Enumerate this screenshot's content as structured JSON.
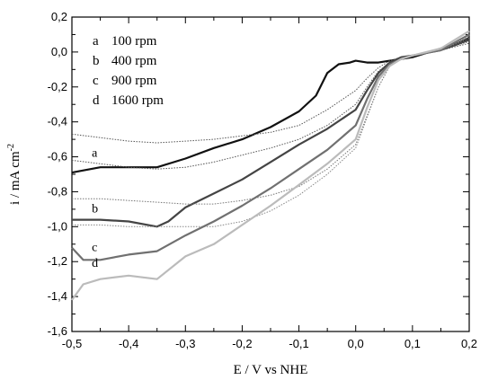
{
  "chart_data": {
    "type": "line",
    "xlabel": "E / V vs NHE",
    "ylabel": "i / mA cm",
    "ylabel_sup": "-2",
    "xlim": [
      -0.5,
      0.2
    ],
    "ylim": [
      -1.6,
      0.2
    ],
    "xticks": [
      -0.5,
      -0.4,
      -0.3,
      -0.2,
      -0.1,
      0.0,
      0.1,
      0.2
    ],
    "xtick_labels": [
      "-0,5",
      "-0,4",
      "-0,3",
      "-0,2",
      "-0,1",
      "0,0",
      "0,1",
      "0,2"
    ],
    "yticks": [
      0.2,
      0.0,
      -0.2,
      -0.4,
      -0.6,
      -0.8,
      -1.0,
      -1.2,
      -1.4,
      -1.6
    ],
    "ytick_labels": [
      "0,2",
      "0,0",
      "-0,2",
      "-0,4",
      "-0,6",
      "-0,8",
      "-1,0",
      "-1,2",
      "-1,4",
      "-1,6"
    ],
    "grid": false,
    "legend_position": "top-left",
    "legend": [
      {
        "letter": "a",
        "text": "100 rpm"
      },
      {
        "letter": "b",
        "text": "400 rpm"
      },
      {
        "letter": "c",
        "text": "900 rpm"
      },
      {
        "letter": "d",
        "text": "1600 rpm"
      }
    ],
    "series": [
      {
        "label": "a",
        "style": "solid",
        "color": "#111111",
        "label_at": [
          -0.465,
          -0.62
        ],
        "x": [
          -0.5,
          -0.45,
          -0.4,
          -0.35,
          -0.3,
          -0.25,
          -0.2,
          -0.15,
          -0.1,
          -0.07,
          -0.05,
          -0.03,
          -0.01,
          0.0,
          0.02,
          0.04,
          0.06,
          0.08,
          0.1,
          0.12,
          0.14,
          0.16,
          0.18,
          0.2
        ],
        "values": [
          -0.69,
          -0.66,
          -0.66,
          -0.66,
          -0.61,
          -0.55,
          -0.5,
          -0.43,
          -0.34,
          -0.25,
          -0.12,
          -0.07,
          -0.06,
          -0.05,
          -0.06,
          -0.06,
          -0.05,
          -0.04,
          -0.03,
          -0.01,
          0.01,
          0.03,
          0.05,
          0.08
        ]
      },
      {
        "label": "a-dotted",
        "style": "dotted",
        "color": "#555555",
        "x": [
          -0.5,
          -0.45,
          -0.4,
          -0.35,
          -0.3,
          -0.25,
          -0.2,
          -0.15,
          -0.1,
          -0.05,
          0.0,
          0.02,
          0.04,
          0.06,
          0.08,
          0.1,
          0.15,
          0.2
        ],
        "values": [
          -0.47,
          -0.49,
          -0.51,
          -0.52,
          -0.51,
          -0.5,
          -0.48,
          -0.46,
          -0.42,
          -0.33,
          -0.22,
          -0.15,
          -0.09,
          -0.05,
          -0.03,
          -0.02,
          0.01,
          0.05
        ]
      },
      {
        "label": "a-dotted-2",
        "style": "dotted",
        "color": "#555555",
        "x": [
          -0.5,
          -0.45,
          -0.4,
          -0.35,
          -0.3,
          -0.25,
          -0.2,
          -0.15,
          -0.1,
          -0.05,
          0.0,
          0.02,
          0.04,
          0.06,
          0.08,
          0.1,
          0.15,
          0.2
        ],
        "values": [
          -0.62,
          -0.64,
          -0.66,
          -0.67,
          -0.66,
          -0.63,
          -0.59,
          -0.55,
          -0.5,
          -0.42,
          -0.3,
          -0.2,
          -0.11,
          -0.06,
          -0.03,
          -0.02,
          0.01,
          0.06
        ]
      },
      {
        "label": "b",
        "style": "solid",
        "color": "#444444",
        "label_at": [
          -0.465,
          -0.94
        ],
        "x": [
          -0.5,
          -0.45,
          -0.4,
          -0.35,
          -0.33,
          -0.3,
          -0.25,
          -0.2,
          -0.15,
          -0.1,
          -0.05,
          0.0,
          0.02,
          0.04,
          0.06,
          0.08,
          0.1,
          0.15,
          0.2
        ],
        "values": [
          -0.96,
          -0.96,
          -0.97,
          -1.0,
          -0.97,
          -0.89,
          -0.81,
          -0.73,
          -0.63,
          -0.53,
          -0.44,
          -0.33,
          -0.22,
          -0.12,
          -0.06,
          -0.03,
          -0.02,
          0.01,
          0.07
        ]
      },
      {
        "label": "b-dotted",
        "style": "dotted",
        "color": "#777777",
        "x": [
          -0.5,
          -0.45,
          -0.4,
          -0.35,
          -0.3,
          -0.25,
          -0.2,
          -0.15,
          -0.1,
          -0.05,
          0.0,
          0.04,
          0.06,
          0.08,
          0.1,
          0.15,
          0.2
        ],
        "values": [
          -0.84,
          -0.84,
          -0.85,
          -0.86,
          -0.87,
          -0.87,
          -0.85,
          -0.82,
          -0.77,
          -0.67,
          -0.53,
          -0.2,
          -0.08,
          -0.04,
          -0.02,
          0.01,
          0.08
        ]
      },
      {
        "label": "b-dotted-2",
        "style": "dotted",
        "color": "#888888",
        "x": [
          -0.5,
          -0.45,
          -0.4,
          -0.35,
          -0.3,
          -0.25,
          -0.2,
          -0.15,
          -0.1,
          -0.05,
          0.0,
          0.04,
          0.06,
          0.08,
          0.1,
          0.15,
          0.2
        ],
        "values": [
          -0.99,
          -0.99,
          -1.0,
          -1.0,
          -1.0,
          -1.0,
          -0.97,
          -0.91,
          -0.82,
          -0.7,
          -0.55,
          -0.2,
          -0.08,
          -0.04,
          -0.02,
          0.01,
          0.09
        ]
      },
      {
        "label": "c",
        "style": "solid",
        "color": "#707070",
        "label_at": [
          -0.465,
          -1.16
        ],
        "x": [
          -0.5,
          -0.48,
          -0.45,
          -0.4,
          -0.35,
          -0.3,
          -0.25,
          -0.2,
          -0.15,
          -0.1,
          -0.05,
          0.0,
          0.02,
          0.04,
          0.06,
          0.08,
          0.1,
          0.15,
          0.2
        ],
        "values": [
          -1.12,
          -1.19,
          -1.19,
          -1.16,
          -1.14,
          -1.05,
          -0.97,
          -0.88,
          -0.78,
          -0.67,
          -0.56,
          -0.42,
          -0.27,
          -0.14,
          -0.07,
          -0.04,
          -0.02,
          0.01,
          0.1
        ]
      },
      {
        "label": "d",
        "style": "solid",
        "color": "#bbbbbb",
        "label_at": [
          -0.465,
          -1.25
        ],
        "x": [
          -0.5,
          -0.48,
          -0.45,
          -0.4,
          -0.35,
          -0.3,
          -0.25,
          -0.2,
          -0.15,
          -0.1,
          -0.05,
          0.0,
          0.02,
          0.04,
          0.06,
          0.08,
          0.1,
          0.15,
          0.2
        ],
        "values": [
          -1.42,
          -1.33,
          -1.3,
          -1.28,
          -1.3,
          -1.17,
          -1.1,
          -0.99,
          -0.88,
          -0.76,
          -0.64,
          -0.5,
          -0.32,
          -0.16,
          -0.08,
          -0.04,
          -0.02,
          0.02,
          0.12
        ]
      }
    ]
  }
}
